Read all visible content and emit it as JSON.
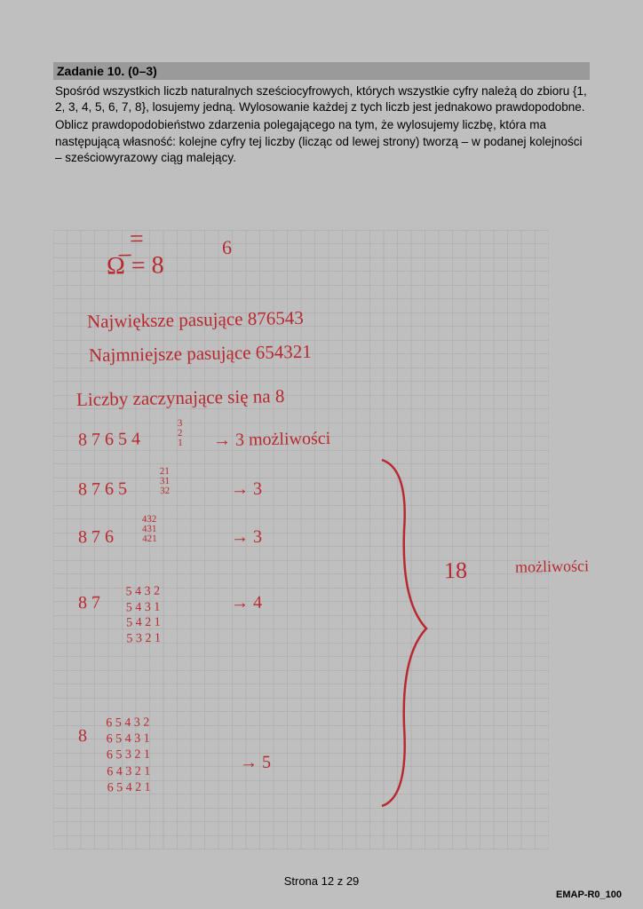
{
  "header": {
    "title": "Zadanie 10. (0–3)"
  },
  "problem": {
    "p1": "Spośród wszystkich liczb naturalnych sześciocyfrowych, których wszystkie cyfry należą do zbioru  {1, 2, 3, 4, 5, 6, 7, 8}, losujemy jedną. Wylosowanie każdej z tych liczb jest jednakowo prawdopodobne.",
    "p2": "Oblicz prawdopodobieństwo zdarzenia polegającego na tym, że wylosujemy liczbę, która ma następującą własność: kolejne cyfry tej liczby (licząc od lewej strony) tworzą – w podanej kolejności – sześciowyrazowy ciąg malejący."
  },
  "grid": {
    "cols": 36,
    "rows": 45,
    "cell": 15.5,
    "line_color": "#a5a5a5",
    "line_width": 0.5
  },
  "handwriting": {
    "color": "#b8292f",
    "lines": {
      "eq_top": "=",
      "omega": "Ω̅  =  8",
      "exp6": "6",
      "t1": "Największe pasujące   876543",
      "t2": "Najmniejsze pasujące    654321",
      "t3": "Liczby zaczynające się na 8",
      "r1a": "8 7 6 5 4",
      "r1b": "3\n2\n1",
      "r1c": "→  3 możliwości",
      "r2a": "8 7 6 5",
      "r2b": "21\n31\n32",
      "r2c": "→  3",
      "r3a": "8 7 6",
      "r3b": "432\n431\n421",
      "r3c": "→  3",
      "r4a": "8 7",
      "r4b": "5 4 3 2\n5 4 3 1\n5 4 2 1\n5 3 2 1",
      "r4c": "→  4",
      "r5a": "8",
      "r5b": "6 5 4 3 2\n6 5 4 3 1\n6 5 3 2 1\n6 4 3 2 1\n6 5 4 2 1",
      "r5c": "→ 5",
      "brace_label": "18",
      "brace_note": "możliwości"
    }
  },
  "footer": {
    "page": "Strona 12 z 29",
    "code": "EMAP-R0_100"
  }
}
